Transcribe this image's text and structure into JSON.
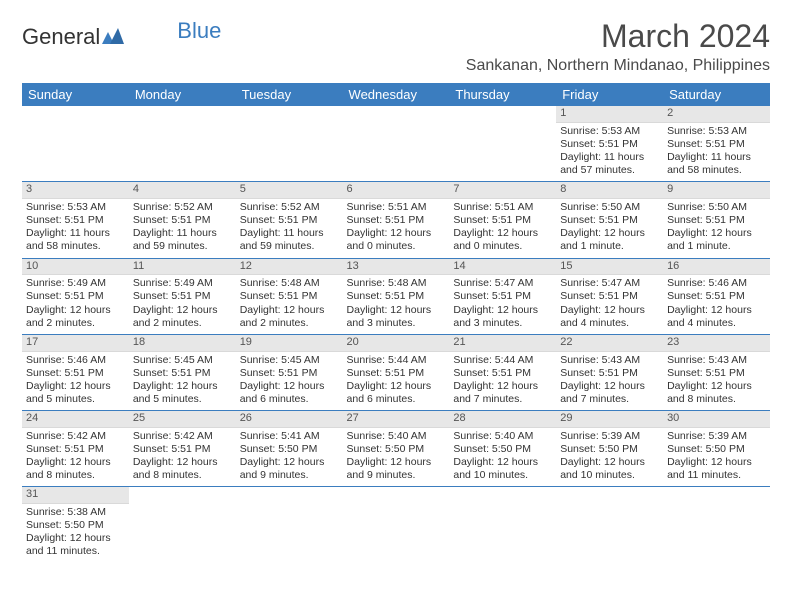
{
  "logo": {
    "text1": "General",
    "text2": "Blue"
  },
  "title": "March 2024",
  "location": "Sankanan, Northern Mindanao, Philippines",
  "colors": {
    "header_bg": "#3b7dbf",
    "header_text": "#ffffff",
    "daynum_bg": "#e7e7e7",
    "text": "#333333",
    "row_border": "#3b7dbf"
  },
  "day_labels": [
    "Sunday",
    "Monday",
    "Tuesday",
    "Wednesday",
    "Thursday",
    "Friday",
    "Saturday"
  ],
  "sunrise_prefix": "Sunrise: ",
  "sunset_prefix": "Sunset: ",
  "daylight_prefix": "Daylight: ",
  "weeks": [
    [
      null,
      null,
      null,
      null,
      null,
      {
        "n": "1",
        "sr": "5:53 AM",
        "ss": "5:51 PM",
        "dl": "11 hours and 57 minutes."
      },
      {
        "n": "2",
        "sr": "5:53 AM",
        "ss": "5:51 PM",
        "dl": "11 hours and 58 minutes."
      }
    ],
    [
      {
        "n": "3",
        "sr": "5:53 AM",
        "ss": "5:51 PM",
        "dl": "11 hours and 58 minutes."
      },
      {
        "n": "4",
        "sr": "5:52 AM",
        "ss": "5:51 PM",
        "dl": "11 hours and 59 minutes."
      },
      {
        "n": "5",
        "sr": "5:52 AM",
        "ss": "5:51 PM",
        "dl": "11 hours and 59 minutes."
      },
      {
        "n": "6",
        "sr": "5:51 AM",
        "ss": "5:51 PM",
        "dl": "12 hours and 0 minutes."
      },
      {
        "n": "7",
        "sr": "5:51 AM",
        "ss": "5:51 PM",
        "dl": "12 hours and 0 minutes."
      },
      {
        "n": "8",
        "sr": "5:50 AM",
        "ss": "5:51 PM",
        "dl": "12 hours and 1 minute."
      },
      {
        "n": "9",
        "sr": "5:50 AM",
        "ss": "5:51 PM",
        "dl": "12 hours and 1 minute."
      }
    ],
    [
      {
        "n": "10",
        "sr": "5:49 AM",
        "ss": "5:51 PM",
        "dl": "12 hours and 2 minutes."
      },
      {
        "n": "11",
        "sr": "5:49 AM",
        "ss": "5:51 PM",
        "dl": "12 hours and 2 minutes."
      },
      {
        "n": "12",
        "sr": "5:48 AM",
        "ss": "5:51 PM",
        "dl": "12 hours and 2 minutes."
      },
      {
        "n": "13",
        "sr": "5:48 AM",
        "ss": "5:51 PM",
        "dl": "12 hours and 3 minutes."
      },
      {
        "n": "14",
        "sr": "5:47 AM",
        "ss": "5:51 PM",
        "dl": "12 hours and 3 minutes."
      },
      {
        "n": "15",
        "sr": "5:47 AM",
        "ss": "5:51 PM",
        "dl": "12 hours and 4 minutes."
      },
      {
        "n": "16",
        "sr": "5:46 AM",
        "ss": "5:51 PM",
        "dl": "12 hours and 4 minutes."
      }
    ],
    [
      {
        "n": "17",
        "sr": "5:46 AM",
        "ss": "5:51 PM",
        "dl": "12 hours and 5 minutes."
      },
      {
        "n": "18",
        "sr": "5:45 AM",
        "ss": "5:51 PM",
        "dl": "12 hours and 5 minutes."
      },
      {
        "n": "19",
        "sr": "5:45 AM",
        "ss": "5:51 PM",
        "dl": "12 hours and 6 minutes."
      },
      {
        "n": "20",
        "sr": "5:44 AM",
        "ss": "5:51 PM",
        "dl": "12 hours and 6 minutes."
      },
      {
        "n": "21",
        "sr": "5:44 AM",
        "ss": "5:51 PM",
        "dl": "12 hours and 7 minutes."
      },
      {
        "n": "22",
        "sr": "5:43 AM",
        "ss": "5:51 PM",
        "dl": "12 hours and 7 minutes."
      },
      {
        "n": "23",
        "sr": "5:43 AM",
        "ss": "5:51 PM",
        "dl": "12 hours and 8 minutes."
      }
    ],
    [
      {
        "n": "24",
        "sr": "5:42 AM",
        "ss": "5:51 PM",
        "dl": "12 hours and 8 minutes."
      },
      {
        "n": "25",
        "sr": "5:42 AM",
        "ss": "5:51 PM",
        "dl": "12 hours and 8 minutes."
      },
      {
        "n": "26",
        "sr": "5:41 AM",
        "ss": "5:50 PM",
        "dl": "12 hours and 9 minutes."
      },
      {
        "n": "27",
        "sr": "5:40 AM",
        "ss": "5:50 PM",
        "dl": "12 hours and 9 minutes."
      },
      {
        "n": "28",
        "sr": "5:40 AM",
        "ss": "5:50 PM",
        "dl": "12 hours and 10 minutes."
      },
      {
        "n": "29",
        "sr": "5:39 AM",
        "ss": "5:50 PM",
        "dl": "12 hours and 10 minutes."
      },
      {
        "n": "30",
        "sr": "5:39 AM",
        "ss": "5:50 PM",
        "dl": "12 hours and 11 minutes."
      }
    ],
    [
      {
        "n": "31",
        "sr": "5:38 AM",
        "ss": "5:50 PM",
        "dl": "12 hours and 11 minutes."
      },
      null,
      null,
      null,
      null,
      null,
      null
    ]
  ]
}
